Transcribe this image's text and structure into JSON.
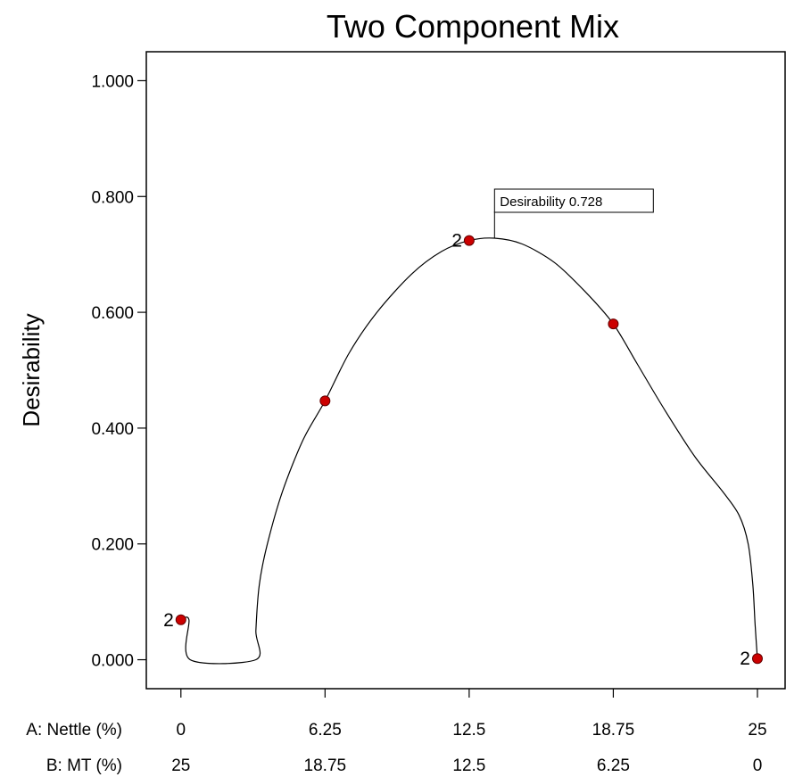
{
  "chart_data": {
    "type": "line",
    "title": "Two Component Mix",
    "ylabel": "Desirability",
    "ylim": [
      -0.05,
      1.05
    ],
    "yticks": [
      "0.000",
      "0.200",
      "0.400",
      "0.600",
      "0.800",
      "1.000"
    ],
    "ytick_values": [
      0.0,
      0.2,
      0.4,
      0.6,
      0.8,
      1.0
    ],
    "xlim": [
      -1.5,
      26.2
    ],
    "x_axes": [
      {
        "label": "A: Nettle (%)",
        "ticks": [
          "0",
          "6.25",
          "12.5",
          "18.75",
          "25"
        ]
      },
      {
        "label": "B: MT (%)",
        "ticks": [
          "25",
          "18.75",
          "12.5",
          "6.25",
          "0"
        ]
      }
    ],
    "xtick_values": [
      0,
      6.25,
      12.5,
      18.75,
      25
    ],
    "curve": [
      {
        "x": 0.0,
        "y": 0.069
      },
      {
        "x": 0.35,
        "y": 0.069
      },
      {
        "x": 0.4,
        "y": 0.0
      },
      {
        "x": 3.25,
        "y": 0.0
      },
      {
        "x": 3.25,
        "y": 0.05
      },
      {
        "x": 3.4,
        "y": 0.13
      },
      {
        "x": 3.75,
        "y": 0.2
      },
      {
        "x": 4.4,
        "y": 0.29
      },
      {
        "x": 5.3,
        "y": 0.38
      },
      {
        "x": 6.25,
        "y": 0.447
      },
      {
        "x": 7.3,
        "y": 0.53
      },
      {
        "x": 8.5,
        "y": 0.6
      },
      {
        "x": 10.0,
        "y": 0.666
      },
      {
        "x": 11.3,
        "y": 0.705
      },
      {
        "x": 12.5,
        "y": 0.724
      },
      {
        "x": 13.6,
        "y": 0.728
      },
      {
        "x": 14.8,
        "y": 0.718
      },
      {
        "x": 16.2,
        "y": 0.686
      },
      {
        "x": 17.5,
        "y": 0.637
      },
      {
        "x": 18.75,
        "y": 0.58
      },
      {
        "x": 19.8,
        "y": 0.51
      },
      {
        "x": 21.0,
        "y": 0.43
      },
      {
        "x": 22.3,
        "y": 0.35
      },
      {
        "x": 23.5,
        "y": 0.29
      },
      {
        "x": 24.2,
        "y": 0.25
      },
      {
        "x": 24.6,
        "y": 0.2
      },
      {
        "x": 24.8,
        "y": 0.13
      },
      {
        "x": 24.9,
        "y": 0.06
      },
      {
        "x": 25.0,
        "y": 0.0
      }
    ],
    "design_points": [
      {
        "x": 0,
        "y": 0.069,
        "label": "2"
      },
      {
        "x": 6.25,
        "y": 0.447,
        "label": ""
      },
      {
        "x": 12.5,
        "y": 0.724,
        "label": "2"
      },
      {
        "x": 18.75,
        "y": 0.58,
        "label": ""
      },
      {
        "x": 25,
        "y": 0.002,
        "label": "2"
      }
    ],
    "point_color": "#cc0000",
    "callout": {
      "text": "Desirability  0.728",
      "x": 13.6,
      "y": 0.728
    }
  }
}
